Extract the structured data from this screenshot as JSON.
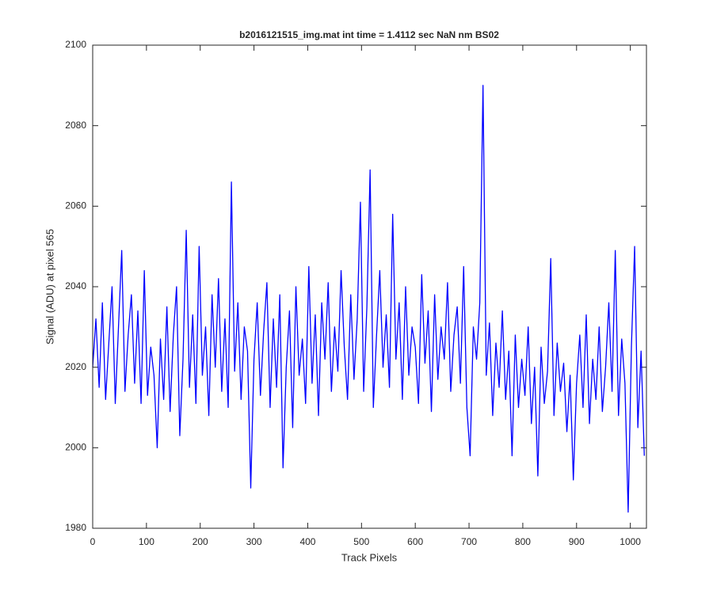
{
  "chart_data": {
    "type": "line",
    "title": "b2016121515_img.mat int time = 1.4112 sec  NaN nm BS02",
    "xlabel": "Track Pixels",
    "ylabel": "Signal (ADU) at pixel 565",
    "color": "#0000ff",
    "xlim": [
      0,
      1030
    ],
    "ylim": [
      1980,
      2100
    ],
    "xticks": [
      0,
      100,
      200,
      300,
      400,
      500,
      600,
      700,
      800,
      900,
      1000
    ],
    "yticks": [
      1980,
      2000,
      2020,
      2040,
      2060,
      2080,
      2100
    ],
    "x": [
      0,
      6,
      12,
      18,
      24,
      30,
      36,
      42,
      48,
      54,
      60,
      66,
      72,
      78,
      84,
      90,
      96,
      102,
      108,
      114,
      120,
      126,
      132,
      138,
      144,
      150,
      156,
      162,
      168,
      174,
      180,
      186,
      192,
      198,
      204,
      210,
      216,
      222,
      228,
      234,
      240,
      246,
      252,
      258,
      264,
      270,
      276,
      282,
      288,
      294,
      300,
      306,
      312,
      318,
      324,
      330,
      336,
      342,
      348,
      354,
      360,
      366,
      372,
      378,
      384,
      390,
      396,
      402,
      408,
      414,
      420,
      426,
      432,
      438,
      444,
      450,
      456,
      462,
      468,
      474,
      480,
      486,
      492,
      498,
      504,
      510,
      516,
      522,
      528,
      534,
      540,
      546,
      552,
      558,
      564,
      570,
      576,
      582,
      588,
      594,
      600,
      606,
      612,
      618,
      624,
      630,
      636,
      642,
      648,
      654,
      660,
      666,
      672,
      678,
      684,
      690,
      696,
      702,
      708,
      714,
      720,
      726,
      732,
      738,
      744,
      750,
      756,
      762,
      768,
      774,
      780,
      786,
      792,
      798,
      804,
      810,
      816,
      822,
      828,
      834,
      840,
      846,
      852,
      858,
      864,
      870,
      876,
      882,
      888,
      894,
      900,
      906,
      912,
      918,
      924,
      930,
      936,
      942,
      948,
      954,
      960,
      966,
      972,
      978,
      984,
      990,
      996,
      1002,
      1008,
      1014,
      1020,
      1026
    ],
    "values": [
      2020,
      2032,
      2015,
      2036,
      2012,
      2026,
      2040,
      2011,
      2030,
      2049,
      2014,
      2028,
      2038,
      2016,
      2034,
      2011,
      2044,
      2013,
      2025,
      2018,
      2000,
      2027,
      2012,
      2035,
      2009,
      2028,
      2040,
      2003,
      2022,
      2054,
      2015,
      2033,
      2011,
      2050,
      2018,
      2030,
      2008,
      2038,
      2020,
      2042,
      2014,
      2032,
      2010,
      2066,
      2019,
      2036,
      2012,
      2030,
      2024,
      1990,
      2022,
      2036,
      2013,
      2029,
      2041,
      2010,
      2032,
      2015,
      2038,
      1995,
      2020,
      2034,
      2005,
      2040,
      2018,
      2027,
      2011,
      2045,
      2016,
      2033,
      2008,
      2036,
      2022,
      2041,
      2014,
      2030,
      2019,
      2044,
      2025,
      2012,
      2038,
      2017,
      2032,
      2061,
      2014,
      2035,
      2069,
      2010,
      2028,
      2044,
      2020,
      2033,
      2015,
      2058,
      2022,
      2036,
      2012,
      2040,
      2018,
      2030,
      2025,
      2011,
      2043,
      2021,
      2034,
      2009,
      2038,
      2017,
      2030,
      2022,
      2041,
      2014,
      2028,
      2035,
      2016,
      2045,
      2010,
      1998,
      2030,
      2022,
      2036,
      2090,
      2018,
      2031,
      2008,
      2026,
      2015,
      2034,
      2012,
      2024,
      1998,
      2028,
      2010,
      2022,
      2013,
      2030,
      2006,
      2020,
      1993,
      2025,
      2011,
      2019,
      2047,
      2008,
      2026,
      2014,
      2021,
      2004,
      2018,
      1992,
      2016,
      2028,
      2010,
      2033,
      2006,
      2022,
      2012,
      2030,
      2009,
      2020,
      2036,
      2014,
      2049,
      2008,
      2027,
      2016,
      1984,
      2025,
      2050,
      2005,
      2024,
      1998
    ]
  }
}
